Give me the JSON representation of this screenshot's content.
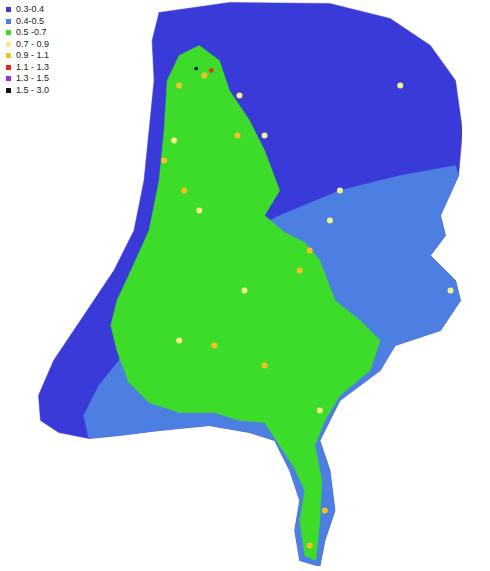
{
  "chart_data": {
    "type": "map",
    "legend": "top-left",
    "classes": [
      {
        "label": "0.3-0.4",
        "color": "#3a3ad8"
      },
      {
        "label": "0.4-0.5",
        "color": "#4d7fe3"
      },
      {
        "label": "0.5 -0.7",
        "color": "#3ddc2a"
      },
      {
        "label": "0.7 - 0.9",
        "color": "#f2f08a"
      },
      {
        "label": "0.9 - 1.1",
        "color": "#f5c023"
      },
      {
        "label": "1.1 - 1.3",
        "color": "#e8261c"
      },
      {
        "label": "1.3 - 1.5",
        "color": "#9b30d0"
      },
      {
        "label": "1.5 - 3.0",
        "color": "#111111"
      }
    ],
    "regions": [
      {
        "class": "0.3-0.4",
        "coordinates": [
          [
            4.512,
            53.54
          ],
          [
            5.086,
            53.59
          ],
          [
            5.906,
            53.585
          ],
          [
            6.398,
            53.51
          ],
          [
            6.726,
            53.375
          ],
          [
            6.931,
            53.2
          ],
          [
            6.988,
            52.95
          ],
          [
            6.956,
            52.725
          ],
          [
            6.808,
            52.525
          ],
          [
            6.849,
            52.425
          ],
          [
            6.726,
            52.325
          ],
          [
            6.931,
            52.2
          ],
          [
            6.972,
            52.1
          ],
          [
            6.808,
            51.95
          ],
          [
            6.439,
            51.875
          ],
          [
            6.316,
            51.75
          ],
          [
            5.988,
            51.6
          ],
          [
            5.824,
            51.4
          ],
          [
            5.906,
            51.25
          ],
          [
            5.947,
            51.05
          ],
          [
            5.865,
            50.9
          ],
          [
            5.824,
            50.77
          ],
          [
            5.66,
            50.8
          ],
          [
            5.619,
            50.95
          ],
          [
            5.66,
            51.1
          ],
          [
            5.578,
            51.25
          ],
          [
            5.455,
            51.4
          ],
          [
            5.25,
            51.44
          ],
          [
            4.922,
            51.475
          ],
          [
            4.512,
            51.45
          ],
          [
            4.184,
            51.425
          ],
          [
            3.938,
            51.41
          ],
          [
            3.692,
            51.44
          ],
          [
            3.544,
            51.5
          ],
          [
            3.528,
            51.625
          ],
          [
            3.651,
            51.8
          ],
          [
            3.815,
            51.95
          ],
          [
            3.979,
            52.1
          ],
          [
            4.143,
            52.25
          ],
          [
            4.307,
            52.45
          ],
          [
            4.389,
            52.7
          ],
          [
            4.43,
            52.95
          ],
          [
            4.471,
            53.2
          ],
          [
            4.455,
            53.4
          ]
        ]
      },
      {
        "class": "0.4-0.5",
        "coordinates": [
          [
            5.086,
            52.4
          ],
          [
            5.496,
            52.525
          ],
          [
            5.988,
            52.65
          ],
          [
            6.48,
            52.725
          ],
          [
            6.931,
            52.775
          ],
          [
            6.956,
            52.725
          ],
          [
            6.808,
            52.525
          ],
          [
            6.849,
            52.425
          ],
          [
            6.726,
            52.325
          ],
          [
            6.931,
            52.2
          ],
          [
            6.972,
            52.1
          ],
          [
            6.808,
            51.95
          ],
          [
            6.439,
            51.875
          ],
          [
            6.316,
            51.75
          ],
          [
            5.988,
            51.6
          ],
          [
            5.824,
            51.4
          ],
          [
            5.906,
            51.25
          ],
          [
            5.947,
            51.05
          ],
          [
            5.865,
            50.9
          ],
          [
            5.824,
            50.77
          ],
          [
            5.66,
            50.8
          ],
          [
            5.619,
            50.95
          ],
          [
            5.66,
            51.1
          ],
          [
            5.578,
            51.25
          ],
          [
            5.455,
            51.4
          ],
          [
            5.25,
            51.44
          ],
          [
            4.922,
            51.475
          ],
          [
            4.512,
            51.45
          ],
          [
            4.184,
            51.425
          ],
          [
            3.938,
            51.41
          ],
          [
            3.897,
            51.525
          ],
          [
            4.02,
            51.675
          ],
          [
            4.184,
            51.8
          ],
          [
            4.266,
            51.95
          ],
          [
            4.348,
            52.1
          ],
          [
            4.512,
            52.25
          ],
          [
            4.84,
            52.35
          ]
        ]
      },
      {
        "class": "0.5 -0.7",
        "coordinates": [
          [
            4.676,
            53.325
          ],
          [
            4.84,
            53.375
          ],
          [
            5.004,
            53.3
          ],
          [
            5.086,
            53.15
          ],
          [
            5.25,
            53.0
          ],
          [
            5.373,
            52.85
          ],
          [
            5.496,
            52.65
          ],
          [
            5.373,
            52.525
          ],
          [
            5.537,
            52.44
          ],
          [
            5.701,
            52.39
          ],
          [
            5.824,
            52.3
          ],
          [
            5.947,
            52.1
          ],
          [
            6.152,
            52.0
          ],
          [
            6.316,
            51.9
          ],
          [
            6.234,
            51.75
          ],
          [
            5.988,
            51.625
          ],
          [
            5.865,
            51.5
          ],
          [
            5.783,
            51.375
          ],
          [
            5.84,
            51.2
          ],
          [
            5.824,
            51.0
          ],
          [
            5.791,
            50.8
          ],
          [
            5.701,
            50.825
          ],
          [
            5.66,
            51.0
          ],
          [
            5.701,
            51.15
          ],
          [
            5.619,
            51.26
          ],
          [
            5.496,
            51.375
          ],
          [
            5.373,
            51.49
          ],
          [
            5.168,
            51.5
          ],
          [
            4.963,
            51.54
          ],
          [
            4.676,
            51.54
          ],
          [
            4.43,
            51.59
          ],
          [
            4.266,
            51.69
          ],
          [
            4.168,
            51.85
          ],
          [
            4.118,
            51.975
          ],
          [
            4.168,
            52.1
          ],
          [
            4.282,
            52.25
          ],
          [
            4.43,
            52.45
          ],
          [
            4.512,
            52.7
          ],
          [
            4.553,
            52.95
          ],
          [
            4.578,
            53.2
          ]
        ]
      }
    ],
    "hotspots": [
      {
        "class": "0.7 - 0.9",
        "lon": 5.168,
        "lat": 53.125
      },
      {
        "class": "0.7 - 0.9",
        "lon": 5.373,
        "lat": 52.925
      },
      {
        "class": "0.7 - 0.9",
        "lon": 4.635,
        "lat": 52.9
      },
      {
        "class": "0.7 - 0.9",
        "lon": 4.84,
        "lat": 52.55
      },
      {
        "class": "0.7 - 0.9",
        "lon": 5.209,
        "lat": 52.15
      },
      {
        "class": "0.7 - 0.9",
        "lon": 4.676,
        "lat": 51.9
      },
      {
        "class": "0.7 - 0.9",
        "lon": 5.824,
        "lat": 51.55
      },
      {
        "class": "0.7 - 0.9",
        "lon": 5.988,
        "lat": 52.65
      },
      {
        "class": "0.7 - 0.9",
        "lon": 6.89,
        "lat": 52.15
      },
      {
        "class": "0.7 - 0.9",
        "lon": 6.48,
        "lat": 53.175
      },
      {
        "class": "0.7 - 0.9",
        "lon": 5.906,
        "lat": 52.5
      },
      {
        "class": "0.9 - 1.1",
        "lon": 4.881,
        "lat": 53.225
      },
      {
        "class": "0.9 - 1.1",
        "lon": 4.676,
        "lat": 53.175
      },
      {
        "class": "0.9 - 1.1",
        "lon": 5.152,
        "lat": 52.925
      },
      {
        "class": "0.9 - 1.1",
        "lon": 4.553,
        "lat": 52.8
      },
      {
        "class": "0.9 - 1.1",
        "lon": 4.717,
        "lat": 52.65
      },
      {
        "class": "0.9 - 1.1",
        "lon": 5.742,
        "lat": 52.35
      },
      {
        "class": "0.9 - 1.1",
        "lon": 5.66,
        "lat": 52.25
      },
      {
        "class": "0.9 - 1.1",
        "lon": 4.963,
        "lat": 51.875
      },
      {
        "class": "0.9 - 1.1",
        "lon": 5.373,
        "lat": 51.775
      },
      {
        "class": "0.9 - 1.1",
        "lon": 5.865,
        "lat": 51.05
      },
      {
        "class": "0.9 - 1.1",
        "lon": 5.742,
        "lat": 50.875
      },
      {
        "class": "1.1 - 1.3",
        "lon": 4.938,
        "lat": 53.25
      },
      {
        "class": "1.5 - 3.0",
        "lon": 4.815,
        "lat": 53.26
      }
    ]
  }
}
